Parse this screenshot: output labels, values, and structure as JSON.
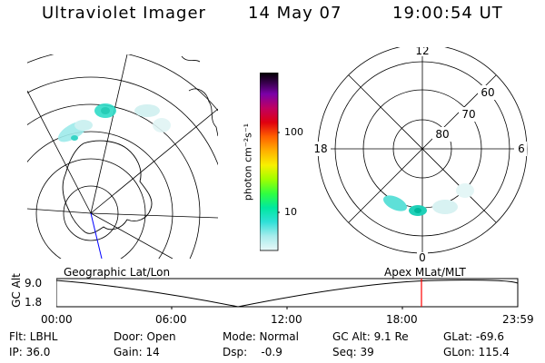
{
  "header": {
    "instrument": "Ultraviolet Imager",
    "date": "14 May 07",
    "time": "19:00:54 UT"
  },
  "colorbar": {
    "unit_label": "photon cm⁻²s⁻¹",
    "ticks": [
      "100",
      "10"
    ],
    "colors": [
      "#000000",
      "#3a0050",
      "#6a00a0",
      "#a000c0",
      "#c00060",
      "#e00010",
      "#ff5000",
      "#ff9000",
      "#ffd000",
      "#f0ff00",
      "#a0ff00",
      "#40ff20",
      "#00ff80",
      "#00e0d0",
      "#60e8e0",
      "#b0f0f0",
      "#e0f8f8"
    ]
  },
  "polar_map": {
    "labels": {
      "top": "12",
      "left": "18",
      "right": "6",
      "bottom": "0"
    },
    "ring_labels": [
      "60",
      "70",
      "80"
    ]
  },
  "timeline": {
    "geo_label": "Geographic Lat/Lon",
    "apex_label": "Apex  MLat/MLT",
    "axis_label": "GC Alt",
    "y_ticks": [
      "9.0",
      "1.8"
    ],
    "x_ticks": [
      "00:00",
      "06:00",
      "12:00",
      "18:00",
      "23:59"
    ],
    "marker_color": "#ff0000"
  },
  "status": {
    "filter": "Flt: LBHL",
    "ip": "IP: 36.0",
    "door": "Door: Open",
    "gain": "Gain: 14",
    "mode": "Mode: Normal",
    "dsp": "Dsp:    -0.9",
    "gc_alt": "GC Alt: 9.1 Re",
    "seq": "Seq: 39",
    "glat": "GLat: -69.6",
    "glon": "GLon: 115.4"
  }
}
